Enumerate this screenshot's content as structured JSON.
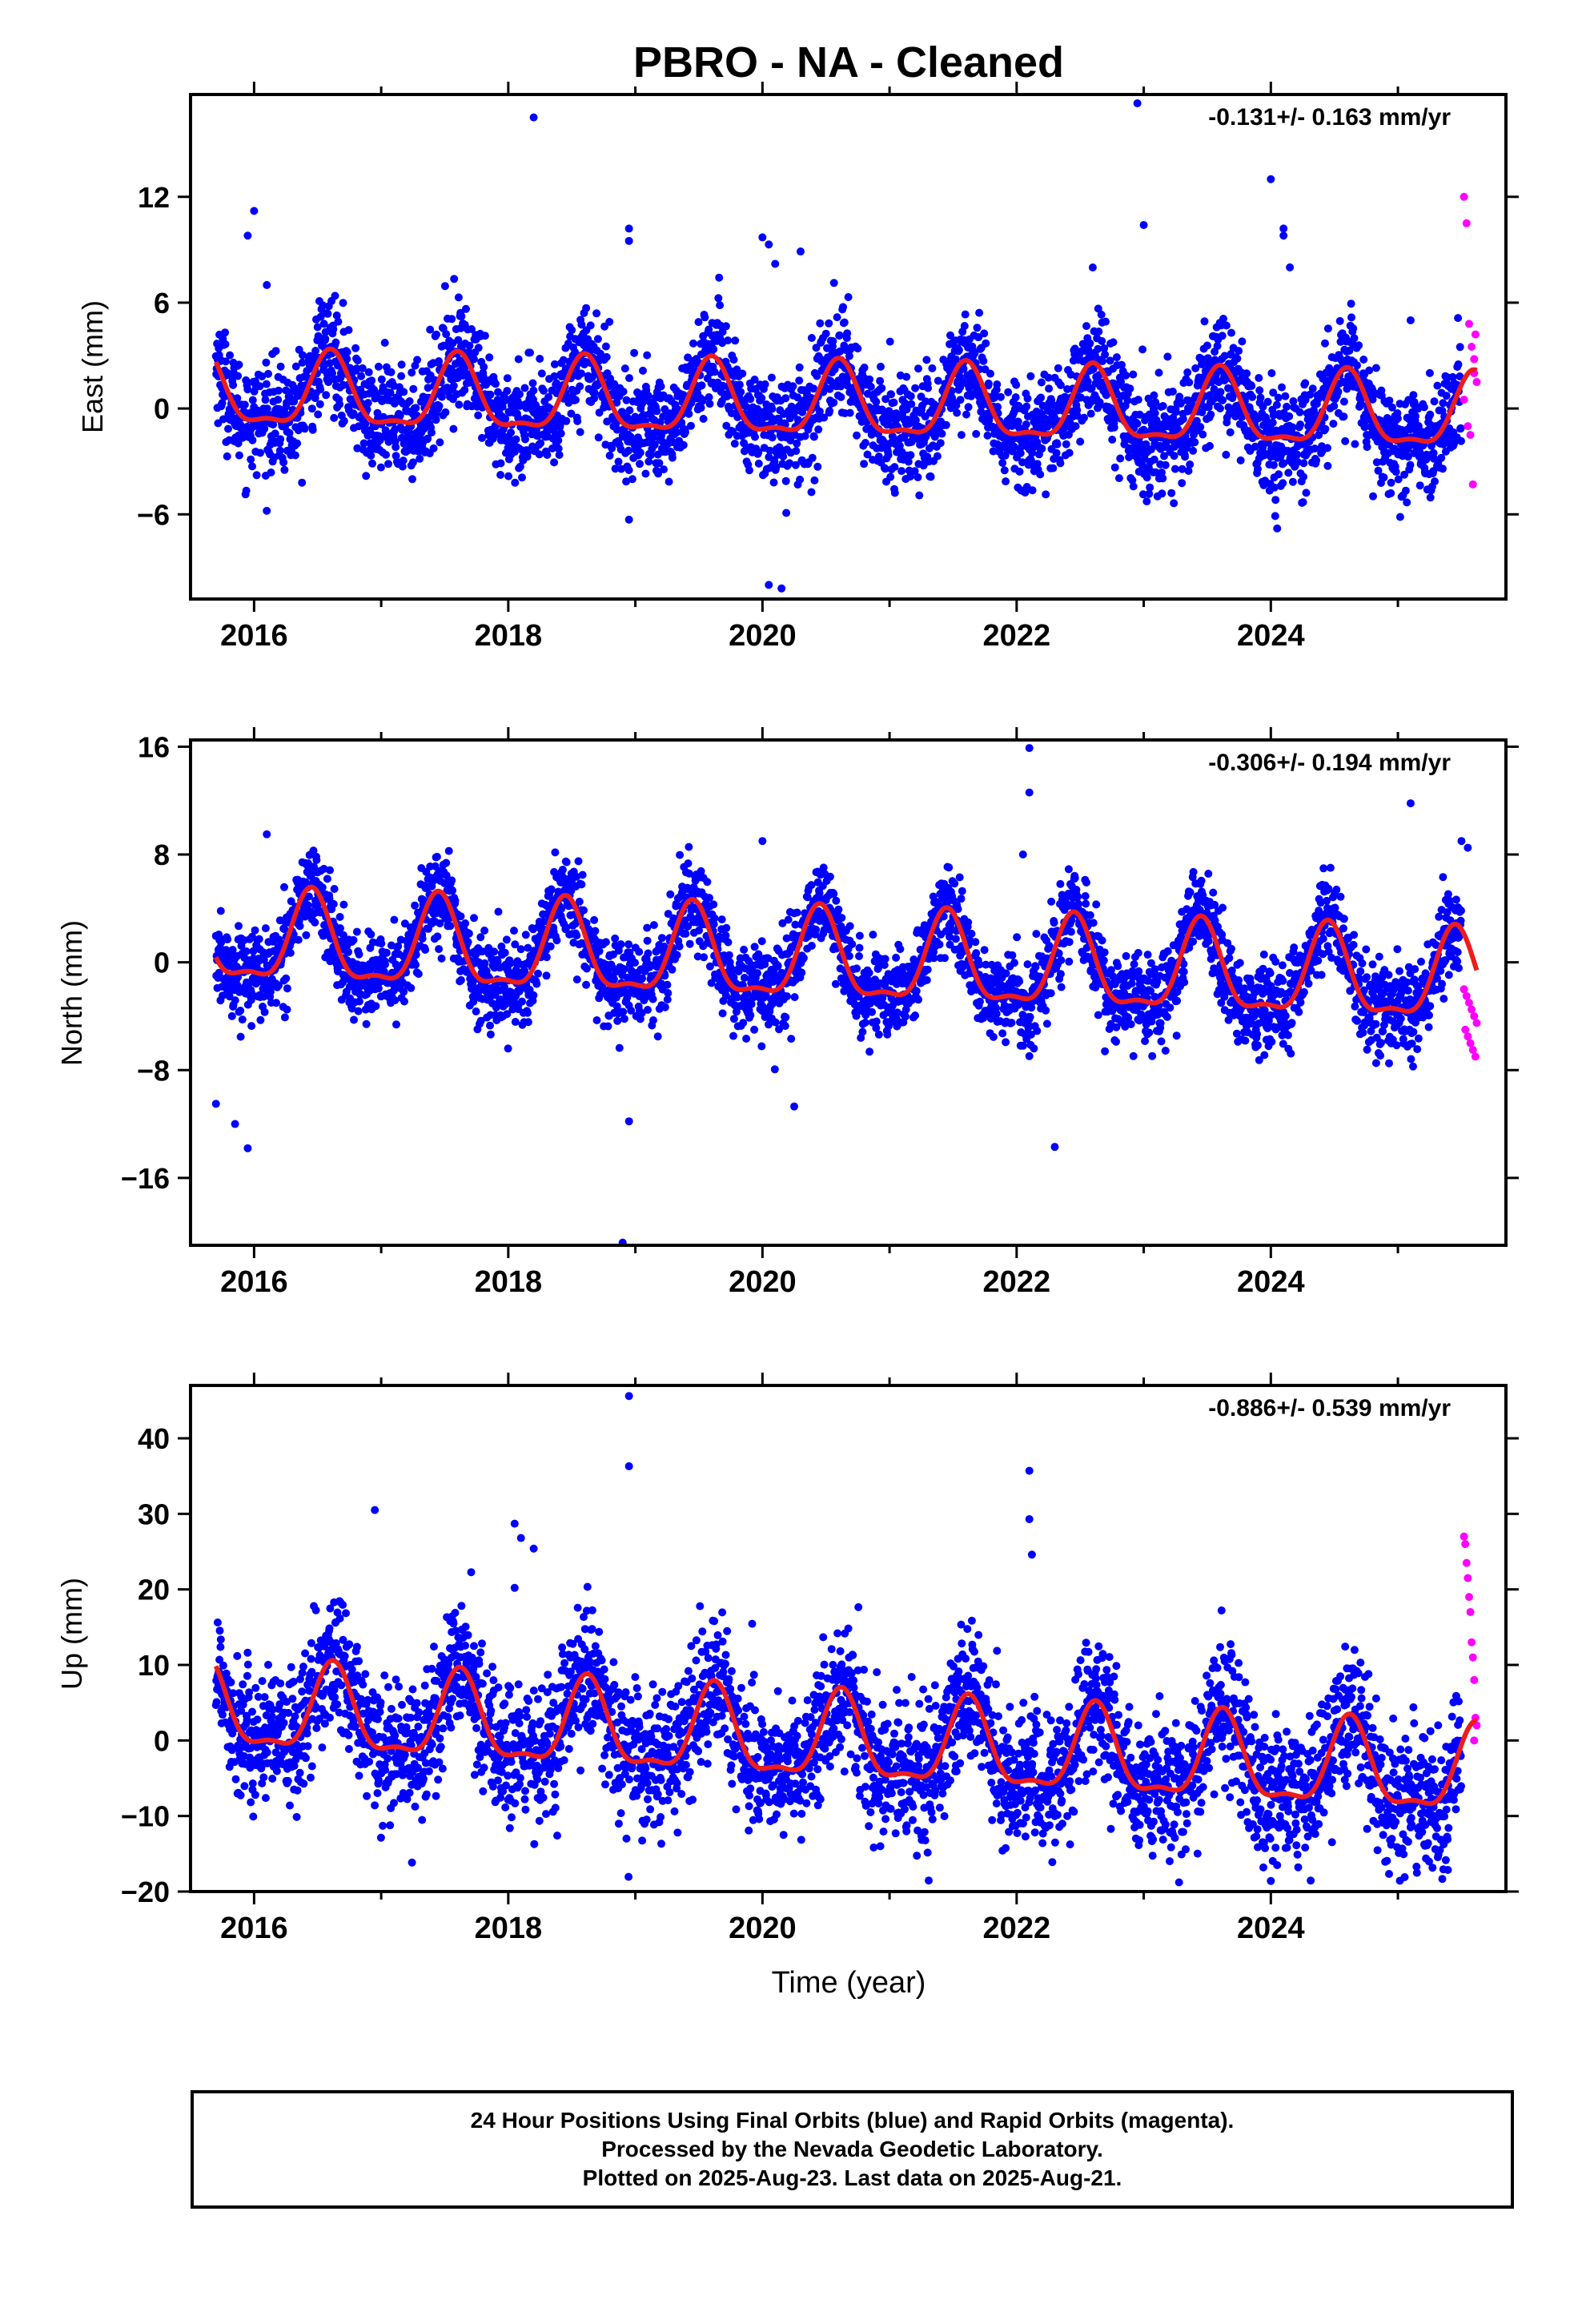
{
  "title": "PBRO  - NA - Cleaned",
  "colors": {
    "final_orbits": "#0000ff",
    "rapid_orbits": "#ff00ff",
    "model_fit": "#ee1c1c",
    "frame": "#000000"
  },
  "footer": {
    "line1": "24 Hour Positions Using Final Orbits (blue) and Rapid Orbits (magenta).",
    "line2": "Processed by the Nevada Geodetic Laboratory.",
    "line3": "Plotted on 2025-Aug-23. Last data on 2025-Aug-21."
  },
  "chart_data": [
    {
      "type": "scatter",
      "ylabel": "East (mm)",
      "xlabel": "",
      "rate_annotation": "-0.131+/- 0.163 mm/yr",
      "xlim": [
        2015.5,
        2025.85
      ],
      "ylim": [
        -10.8,
        17.8
      ],
      "xticks": [
        2016,
        2018,
        2020,
        2022,
        2024
      ],
      "yticks": [
        12,
        6,
        0,
        -6
      ],
      "seasonal_model": {
        "rate_mm_per_yr": -0.131,
        "annual_amplitude_mm": 2.0,
        "phase_peak": 0.6,
        "offset_mm": 0.8,
        "epoch": 2015.7
      },
      "noise_sd_mm": 1.5,
      "series": [
        {
          "name": "Final Orbits",
          "color": "#0000ff",
          "x_range": [
            2015.7,
            2025.5
          ]
        },
        {
          "name": "Rapid Orbits",
          "color": "#ff00ff",
          "x": [
            2025.52,
            2025.54,
            2025.56,
            2025.58,
            2025.6,
            2025.62,
            2025.52,
            2025.55,
            2025.57,
            2025.59,
            2025.61,
            2025.6
          ],
          "y": [
            12.0,
            10.5,
            4.8,
            3.5,
            2.8,
            1.5,
            0.5,
            -1.0,
            -1.5,
            -4.3,
            4.2,
            2.0
          ]
        }
      ],
      "outliers": {
        "x": [
          2016.0,
          2015.95,
          2016.1,
          2018.2,
          2018.95,
          2018.95,
          2020.0,
          2020.05,
          2020.1,
          2020.3,
          2022.95,
          2023.0,
          2024.0,
          2024.1,
          2024.1,
          2024.15,
          2020.05,
          2020.15,
          2024.05,
          2025.1,
          2018.95
        ],
        "y": [
          11.2,
          9.8,
          7.0,
          16.5,
          10.2,
          9.5,
          9.7,
          9.3,
          8.2,
          8.9,
          17.3,
          10.4,
          13.0,
          10.2,
          9.8,
          8.0,
          -10.0,
          -10.2,
          -6.8,
          5.0,
          -6.3
        ]
      },
      "fit": {
        "name": "Model",
        "color": "#ee1c1c"
      }
    },
    {
      "type": "scatter",
      "ylabel": "North (mm)",
      "xlabel": "",
      "rate_annotation": "-0.306+/- 0.194 mm/yr",
      "xlim": [
        2015.5,
        2025.85
      ],
      "ylim": [
        -21.0,
        16.5
      ],
      "xticks": [
        2016,
        2018,
        2020,
        2022,
        2024
      ],
      "yticks": [
        16,
        8,
        0,
        -8,
        -16
      ],
      "seasonal_model": {
        "rate_mm_per_yr": -0.306,
        "annual_amplitude_mm": 3.2,
        "phase_peak": 0.45,
        "offset_mm": 1.5,
        "epoch": 2015.7
      },
      "noise_sd_mm": 1.6,
      "series": [
        {
          "name": "Final Orbits",
          "color": "#0000ff",
          "x_range": [
            2015.7,
            2025.5
          ]
        },
        {
          "name": "Rapid Orbits",
          "color": "#ff00ff",
          "x": [
            2025.52,
            2025.54,
            2025.56,
            2025.58,
            2025.6,
            2025.62,
            2025.53,
            2025.55,
            2025.57,
            2025.59,
            2025.61
          ],
          "y": [
            -2.0,
            -2.5,
            -3.0,
            -3.5,
            -4.0,
            -4.5,
            -5.0,
            -5.5,
            -6.0,
            -6.5,
            -7.0
          ]
        }
      ],
      "outliers": {
        "x": [
          2015.7,
          2015.85,
          2015.95,
          2016.1,
          2018.95,
          2018.9,
          2020.0,
          2020.25,
          2022.1,
          2022.1,
          2022.3,
          2025.1,
          2025.5,
          2025.55,
          2022.05
        ],
        "y": [
          -10.5,
          -12.0,
          -13.8,
          9.5,
          -11.8,
          -20.8,
          9.0,
          -10.7,
          15.9,
          12.6,
          -13.7,
          11.8,
          9.0,
          8.5,
          8.0
        ]
      },
      "fit": {
        "name": "Model",
        "color": "#ee1c1c"
      }
    },
    {
      "type": "scatter",
      "ylabel": "Up (mm)",
      "xlabel": "Time (year)",
      "rate_annotation": "-0.886+/- 0.539 mm/yr",
      "xlim": [
        2015.5,
        2025.85
      ],
      "ylim": [
        -20.0,
        47.0
      ],
      "xticks": [
        2016,
        2018,
        2020,
        2022,
        2024
      ],
      "yticks": [
        40,
        30,
        20,
        10,
        0,
        -10,
        -20
      ],
      "seasonal_model": {
        "rate_mm_per_yr": -0.886,
        "annual_amplitude_mm": 5.5,
        "phase_peak": 0.62,
        "offset_mm": 4.0,
        "epoch": 2015.7
      },
      "noise_sd_mm": 4.5,
      "series": [
        {
          "name": "Final Orbits",
          "color": "#0000ff",
          "x_range": [
            2015.7,
            2025.5
          ]
        },
        {
          "name": "Rapid Orbits",
          "color": "#ff00ff",
          "x": [
            2025.52,
            2025.53,
            2025.54,
            2025.55,
            2025.56,
            2025.57,
            2025.58,
            2025.59,
            2025.6,
            2025.61,
            2025.62,
            2025.6
          ],
          "y": [
            27.0,
            26.0,
            23.5,
            21.5,
            19.0,
            17.0,
            13.0,
            11.0,
            8.0,
            3.0,
            2.0,
            0.0
          ]
        }
      ],
      "outliers": {
        "x": [
          2016.95,
          2018.05,
          2018.1,
          2018.2,
          2018.05,
          2018.95,
          2018.95,
          2022.1,
          2022.1,
          2022.12,
          2024.0,
          2024.05
        ],
        "y": [
          30.5,
          28.7,
          26.8,
          25.4,
          20.2,
          45.6,
          36.3,
          35.7,
          29.3,
          24.6,
          -18.6,
          -16.5
        ]
      },
      "fit": {
        "name": "Model",
        "color": "#ee1c1c"
      }
    }
  ]
}
